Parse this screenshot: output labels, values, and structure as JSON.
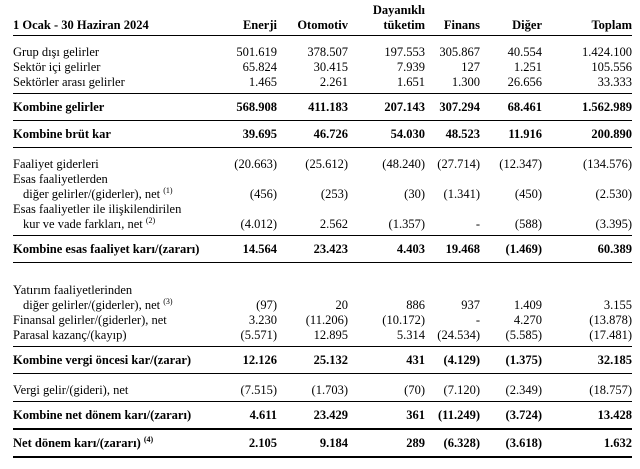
{
  "document": {
    "period_header": "1 Ocak - 30 Haziran 2024",
    "columns": [
      {
        "key": "enerji",
        "lines": [
          "Enerji"
        ]
      },
      {
        "key": "otomotiv",
        "lines": [
          "Otomotiv"
        ]
      },
      {
        "key": "dayanikli-tuketim",
        "lines": [
          "Dayanıklı",
          "tüketim"
        ]
      },
      {
        "key": "finans",
        "lines": [
          "Finans"
        ]
      },
      {
        "key": "diger",
        "lines": [
          "Diğer"
        ]
      },
      {
        "key": "toplam",
        "lines": [
          "Toplam"
        ]
      }
    ],
    "rows": [
      {
        "label_lines": [
          "Grup dışı gelirler"
        ],
        "sup": "",
        "bold": false,
        "is_total": false,
        "rule_below": "none",
        "gap_before": "normal",
        "values": [
          "501.619",
          "378.507",
          "197.553",
          "305.867",
          "40.554",
          "1.424.100"
        ]
      },
      {
        "label_lines": [
          "Sektör içi gelirler"
        ],
        "sup": "",
        "bold": false,
        "is_total": false,
        "rule_below": "none",
        "gap_before": "none",
        "values": [
          "65.824",
          "30.415",
          "7.939",
          "127",
          "1.251",
          "105.556"
        ]
      },
      {
        "label_lines": [
          "Sektörler arası gelirler"
        ],
        "sup": "",
        "bold": false,
        "is_total": false,
        "rule_below": "thin",
        "gap_before": "none",
        "values": [
          "1.465",
          "2.261",
          "1.651",
          "1.300",
          "26.656",
          "33.333"
        ]
      },
      {
        "label_lines": [
          "Kombine gelirler"
        ],
        "sup": "",
        "bold": true,
        "is_total": true,
        "rule_below": "thin",
        "gap_before": "none",
        "values": [
          "568.908",
          "411.183",
          "207.143",
          "307.294",
          "68.461",
          "1.562.989"
        ]
      },
      {
        "label_lines": [
          "Kombine brüt kar"
        ],
        "sup": "",
        "bold": true,
        "is_total": true,
        "rule_below": "thin",
        "gap_before": "none",
        "values": [
          "39.695",
          "46.726",
          "54.030",
          "48.523",
          "11.916",
          "200.890"
        ]
      },
      {
        "label_lines": [
          "Faaliyet giderleri"
        ],
        "sup": "",
        "bold": false,
        "is_total": false,
        "rule_below": "none",
        "gap_before": "normal",
        "values": [
          "(20.663)",
          "(25.612)",
          "(48.240)",
          "(27.714)",
          "(12.347)",
          "(134.576)"
        ]
      },
      {
        "label_lines": [
          "Esas faaliyetlerden",
          "diğer gelirler/(giderler), net"
        ],
        "sup": "(1)",
        "bold": false,
        "is_total": false,
        "rule_below": "none",
        "gap_before": "none",
        "values": [
          "(456)",
          "(253)",
          "(30)",
          "(1.341)",
          "(450)",
          "(2.530)"
        ]
      },
      {
        "label_lines": [
          "Esas faaliyetler ile ilişkilendirilen",
          "kur ve vade farkları, net"
        ],
        "sup": "(2)",
        "bold": false,
        "is_total": false,
        "rule_below": "thin",
        "gap_before": "none",
        "values": [
          "(4.012)",
          "2.562",
          "(1.357)",
          "-",
          "(588)",
          "(3.395)"
        ]
      },
      {
        "label_lines": [
          "Kombine esas faaliyet karı/(zararı)"
        ],
        "sup": "",
        "bold": true,
        "is_total": true,
        "rule_below": "thin",
        "gap_before": "none",
        "values": [
          "14.564",
          "23.423",
          "4.403",
          "19.468",
          "(1.469)",
          "60.389"
        ]
      },
      {
        "label_lines": [
          "Yatırım faaliyetlerinden",
          "diğer gelirler/(giderler), net"
        ],
        "sup": "(3)",
        "bold": false,
        "is_total": false,
        "rule_below": "none",
        "gap_before": "large",
        "values": [
          "(97)",
          "20",
          "886",
          "937",
          "1.409",
          "3.155"
        ]
      },
      {
        "label_lines": [
          "Finansal gelirler/(giderler), net"
        ],
        "sup": "",
        "bold": false,
        "is_total": false,
        "rule_below": "none",
        "gap_before": "none",
        "values": [
          "3.230",
          "(11.206)",
          "(10.172)",
          "-",
          "4.270",
          "(13.878)"
        ]
      },
      {
        "label_lines": [
          "Parasal kazanç/(kayıp)"
        ],
        "sup": "",
        "bold": false,
        "is_total": false,
        "rule_below": "thin",
        "gap_before": "none",
        "values": [
          "(5.571)",
          "12.895",
          "5.314",
          "(24.534)",
          "(5.585)",
          "(17.481)"
        ]
      },
      {
        "label_lines": [
          "Kombine vergi öncesi kar/(zarar)"
        ],
        "sup": "",
        "bold": true,
        "is_total": true,
        "rule_below": "thin",
        "gap_before": "none",
        "values": [
          "12.126",
          "25.132",
          "431",
          "(4.129)",
          "(1.375)",
          "32.185"
        ]
      },
      {
        "label_lines": [
          "Vergi gelir/(gideri), net"
        ],
        "sup": "",
        "bold": false,
        "is_total": false,
        "rule_below": "thin",
        "gap_before": "normal",
        "values": [
          "(7.515)",
          "(1.703)",
          "(70)",
          "(7.120)",
          "(2.349)",
          "(18.757)"
        ]
      },
      {
        "label_lines": [
          "Kombine net dönem karı/(zararı)"
        ],
        "sup": "",
        "bold": true,
        "is_total": true,
        "rule_below": "thick",
        "gap_before": "none",
        "values": [
          "4.611",
          "23.429",
          "361",
          "(11.249)",
          "(3.724)",
          "13.428"
        ]
      },
      {
        "label_lines": [
          "Net dönem karı/(zararı)"
        ],
        "sup": "(4)",
        "bold": true,
        "is_total": true,
        "rule_below": "thick",
        "gap_before": "none",
        "values": [
          "2.105",
          "9.184",
          "289",
          "(6.328)",
          "(3.618)",
          "1.632"
        ]
      }
    ]
  }
}
